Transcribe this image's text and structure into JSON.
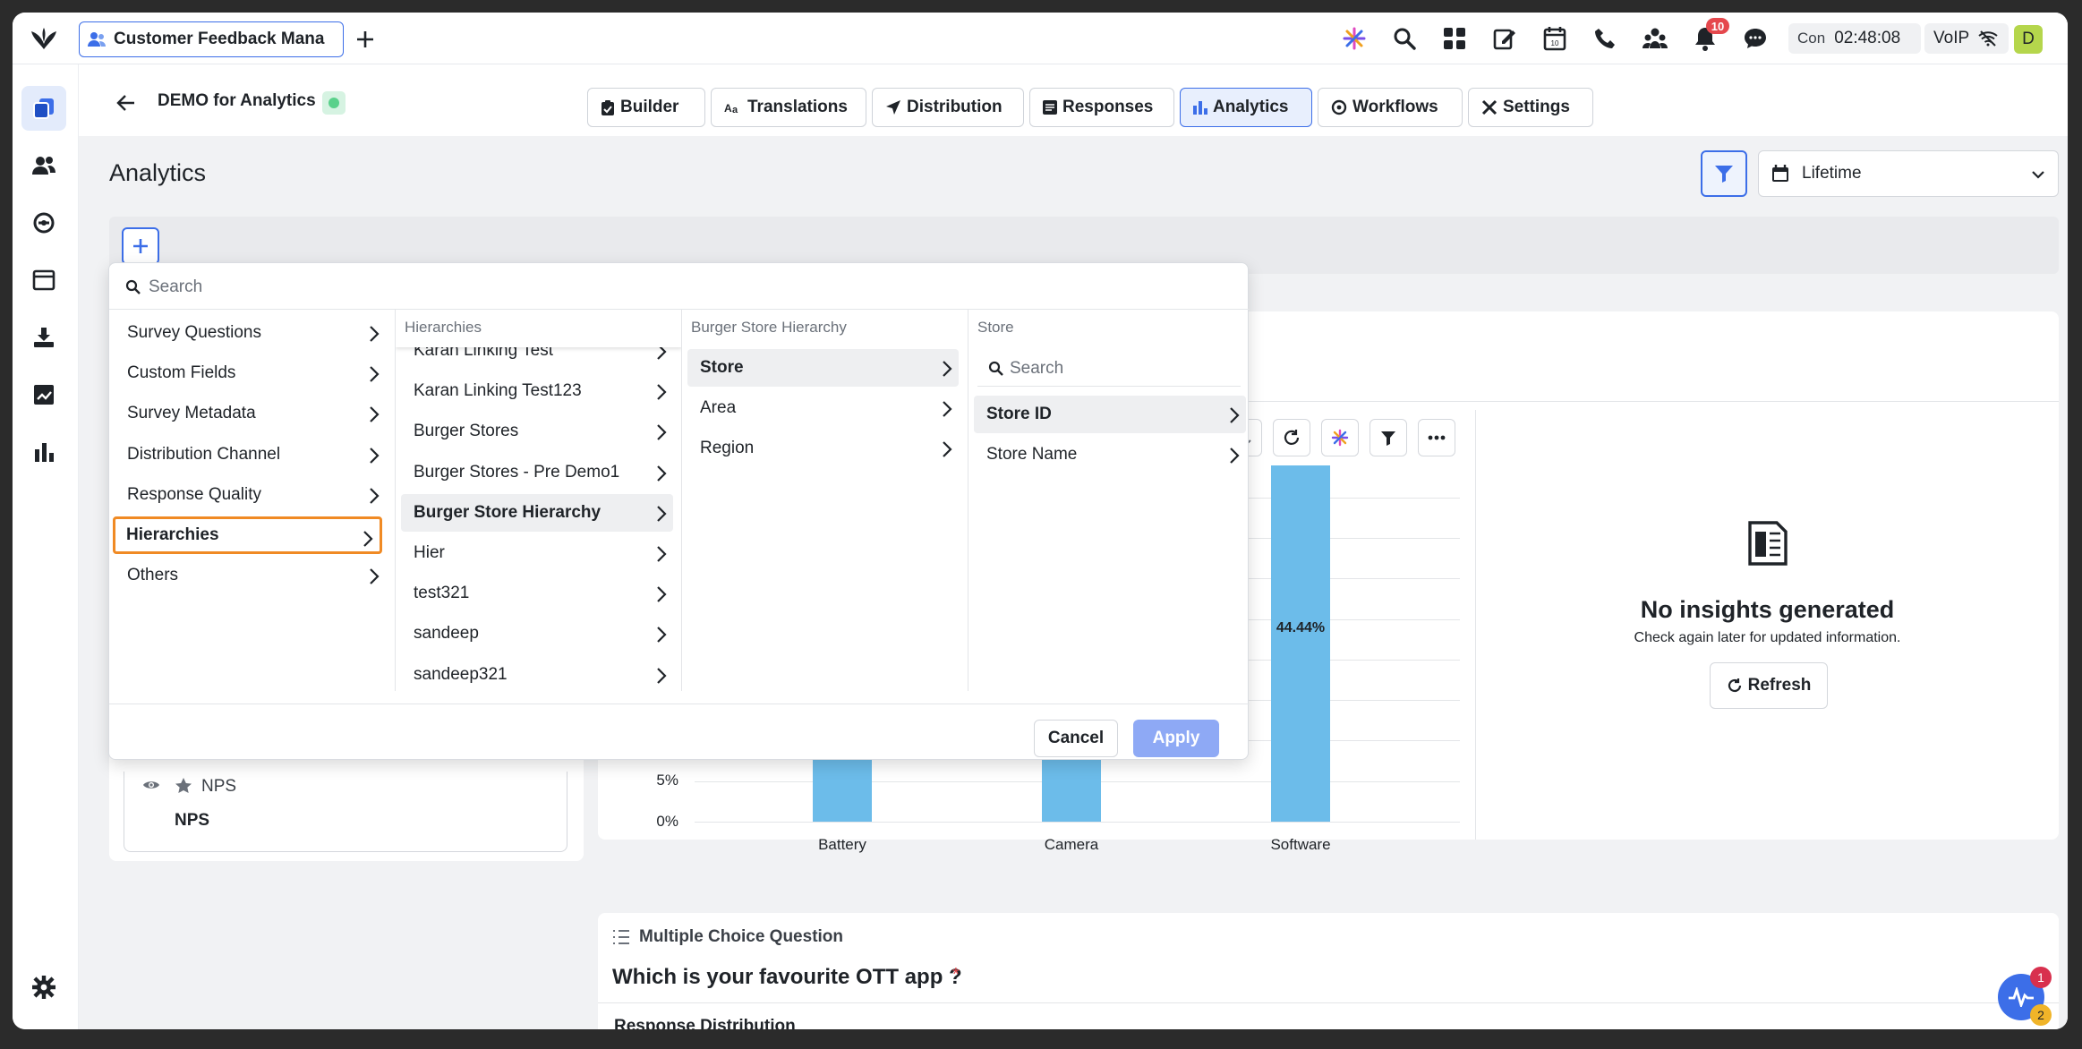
{
  "topbar": {
    "app_tab_title": "Customer Feedback Mana",
    "notification_count": "10",
    "call_status": "Con",
    "timer": "02:48:08",
    "voip_label": "VoIP",
    "avatar_initial": "D"
  },
  "subheader": {
    "survey_name": "DEMO for Analytics",
    "tabs": [
      {
        "label": "Builder",
        "icon": "clipboard-icon"
      },
      {
        "label": "Translations",
        "icon": "translate-icon"
      },
      {
        "label": "Distribution",
        "icon": "send-icon"
      },
      {
        "label": "Responses",
        "icon": "list-icon"
      },
      {
        "label": "Analytics",
        "icon": "bar-chart-icon",
        "active": true
      },
      {
        "label": "Workflows",
        "icon": "workflow-icon"
      },
      {
        "label": "Settings",
        "icon": "tools-icon"
      }
    ]
  },
  "page": {
    "title": "Analytics",
    "date_range": "Lifetime"
  },
  "filter_menu": {
    "search_placeholder": "Search",
    "categories": [
      "Survey Questions",
      "Custom Fields",
      "Survey Metadata",
      "Distribution Channel",
      "Response Quality",
      "Hierarchies",
      "Others"
    ],
    "selected_category": "Hierarchies",
    "hierarchies_header": "Hierarchies",
    "hierarchies": [
      "Karan Linking Test",
      "Karan Linking Test123",
      "Burger Stores",
      "Burger Stores - Pre Demo1",
      "Burger Store Hierarchy",
      "Hier",
      "test321",
      "sandeep",
      "sandeep321"
    ],
    "selected_hierarchy": "Burger Store Hierarchy",
    "levels_header": "Burger Store Hierarchy",
    "levels": [
      "Store",
      "Area",
      "Region"
    ],
    "selected_level": "Store",
    "fields_header": "Store",
    "fields_search_placeholder": "Search",
    "fields": [
      "Store ID",
      "Store Name"
    ],
    "selected_field": "Store ID",
    "cancel_label": "Cancel",
    "apply_label": "Apply"
  },
  "left_panel": {
    "nps_type": "NPS",
    "nps_label": "NPS"
  },
  "chart_data": {
    "type": "bar",
    "categories": [
      "Battery",
      "Camera",
      "Software"
    ],
    "values": [
      null,
      null,
      44.44
    ],
    "value_labels": [
      "",
      "",
      "44.44%"
    ],
    "y_ticks": [
      "0%",
      "5%"
    ],
    "y_tick_values": [
      0,
      5
    ],
    "ylim": [
      0,
      45
    ],
    "grid": true,
    "bar_color": "#6cbcea"
  },
  "insights": {
    "title": "No insights generated",
    "subtitle": "Check again later for updated information.",
    "refresh_label": "Refresh"
  },
  "question2": {
    "type_label": "Multiple Choice Question",
    "title": "Which is your favourite OTT app ?",
    "required_mark": "*",
    "section_label": "Response Distribution"
  },
  "fab": {
    "badge_top": "1",
    "badge_bottom": "2"
  },
  "colors": {
    "accent": "#3c6ee8",
    "highlight_outline": "#f08a24",
    "notification_badge": "#e5484d",
    "status_dot": "#5ad18b",
    "apply_disabled": "#8ea9f5"
  }
}
